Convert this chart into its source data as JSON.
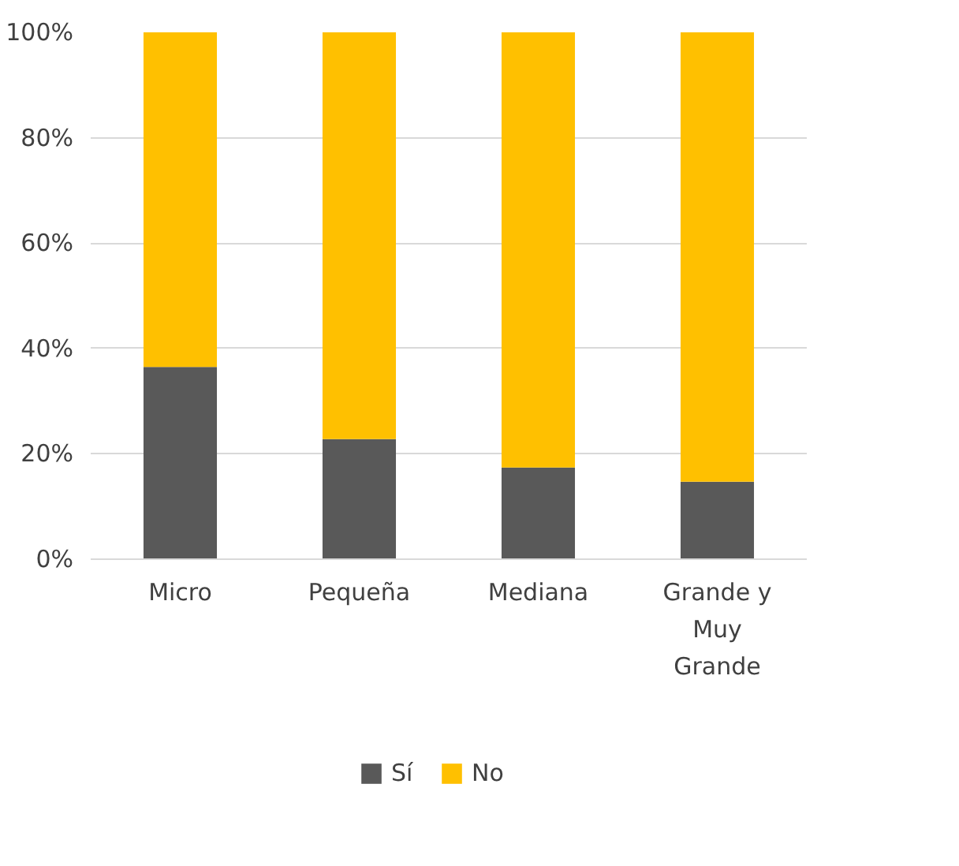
{
  "chart_data": {
    "type": "bar",
    "stacked": true,
    "categories": [
      "Micro",
      "Pequeña",
      "Mediana",
      "Grande y Muy Grande"
    ],
    "series": [
      {
        "name": "Sí",
        "color": "#595959",
        "values": [
          36.5,
          22.8,
          17.4,
          14.7
        ]
      },
      {
        "name": "No",
        "color": "#ffc000",
        "values": [
          63.5,
          77.2,
          82.6,
          85.3
        ]
      }
    ],
    "ylim": [
      0,
      100
    ],
    "yticks": [
      {
        "value": 0,
        "label": "0%"
      },
      {
        "value": 20,
        "label": "20%"
      },
      {
        "value": 40,
        "label": "40%"
      },
      {
        "value": 60,
        "label": "60%"
      },
      {
        "value": 80,
        "label": "80%"
      },
      {
        "value": 100,
        "label": "100%"
      }
    ],
    "grid": "y",
    "legend": "bottom"
  }
}
